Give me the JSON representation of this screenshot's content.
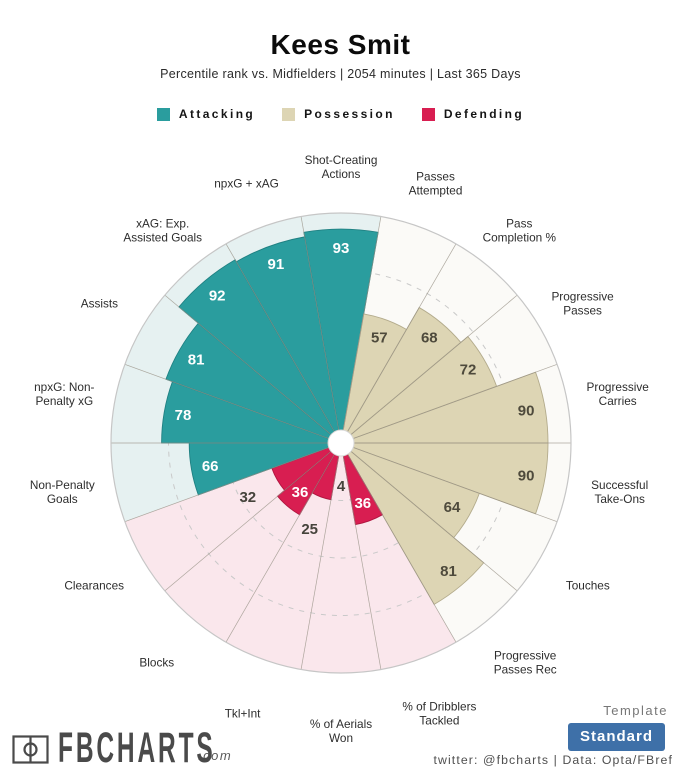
{
  "header": {
    "title": "Kees Smit",
    "subtitle": "Percentile rank vs. Midfielders | 2054 minutes | Last 365 Days"
  },
  "legend": [
    {
      "label": "Attacking",
      "color": "#2a9d9e"
    },
    {
      "label": "Possession",
      "color": "#ddd5b4"
    },
    {
      "label": "Defending",
      "color": "#d81e51"
    }
  ],
  "chart_data": {
    "type": "pie",
    "subtype": "pizza-percentile",
    "title": "Kees Smit",
    "comparison_group": "Midfielders",
    "minutes": "2054",
    "period": "Last 365 Days",
    "value_range": [
      0,
      100
    ],
    "grid_rings": [
      25,
      50,
      75
    ],
    "grid_style": "dashed",
    "groups": {
      "attacking": {
        "fill": "#2a9d9e",
        "bg": "#e6f1f1",
        "stroke": "#1f8082",
        "value_color": "#ffffff"
      },
      "possession": {
        "fill": "#ddd5b4",
        "bg": "#fbfaf7",
        "stroke": "#b3ab8c",
        "value_color": "#4e4a3c"
      },
      "defending": {
        "fill": "#d81e51",
        "bg": "#fae7ec",
        "stroke": "#b01640",
        "value_color": "#ffffff"
      }
    },
    "slices": [
      {
        "label_lines": [
          "Shot-Creating",
          "Actions"
        ],
        "value": 93,
        "group": "attacking"
      },
      {
        "label_lines": [
          "Passes",
          "Attempted"
        ],
        "value": 57,
        "group": "possession"
      },
      {
        "label_lines": [
          "Pass",
          "Completion %"
        ],
        "value": 68,
        "group": "possession"
      },
      {
        "label_lines": [
          "Progressive",
          "Passes"
        ],
        "value": 72,
        "group": "possession"
      },
      {
        "label_lines": [
          "Progressive",
          "Carries"
        ],
        "value": 90,
        "group": "possession"
      },
      {
        "label_lines": [
          "Successful",
          "Take-Ons"
        ],
        "value": 90,
        "group": "possession"
      },
      {
        "label_lines": [
          "Touches"
        ],
        "value": 64,
        "group": "possession"
      },
      {
        "label_lines": [
          "Progressive",
          "Passes Rec"
        ],
        "value": 81,
        "group": "possession"
      },
      {
        "label_lines": [
          "% of Dribblers",
          "Tackled"
        ],
        "value": 36,
        "group": "defending"
      },
      {
        "label_lines": [
          "% of Aerials",
          "Won"
        ],
        "value": 4,
        "group": "defending"
      },
      {
        "label_lines": [
          "Tkl+Int"
        ],
        "value": 25,
        "group": "defending"
      },
      {
        "label_lines": [
          "Blocks"
        ],
        "value": 36,
        "group": "defending"
      },
      {
        "label_lines": [
          "Clearances"
        ],
        "value": 32,
        "group": "defending"
      },
      {
        "label_lines": [
          "Non-Penalty",
          "Goals"
        ],
        "value": 66,
        "group": "attacking"
      },
      {
        "label_lines": [
          "npxG: Non-",
          "Penalty xG"
        ],
        "value": 78,
        "group": "attacking"
      },
      {
        "label_lines": [
          "Assists"
        ],
        "value": 81,
        "group": "attacking"
      },
      {
        "label_lines": [
          "xAG: Exp.",
          "Assisted Goals"
        ],
        "value": 92,
        "group": "attacking"
      },
      {
        "label_lines": [
          "npxG + xAG"
        ],
        "value": 91,
        "group": "attacking"
      }
    ]
  },
  "footer": {
    "brand_name": "FBCHARTS",
    "brand_tld": ".com",
    "template_label": "Template",
    "template_value": "Standard",
    "credit": "twitter: @fbcharts | Data: Opta/FBref"
  },
  "colors": {
    "button_blue": "#3e70a8",
    "brand_gray": "#4a4a4a",
    "outside_value_text": "#45433b",
    "slice_label_text": "#2d2d2d"
  }
}
